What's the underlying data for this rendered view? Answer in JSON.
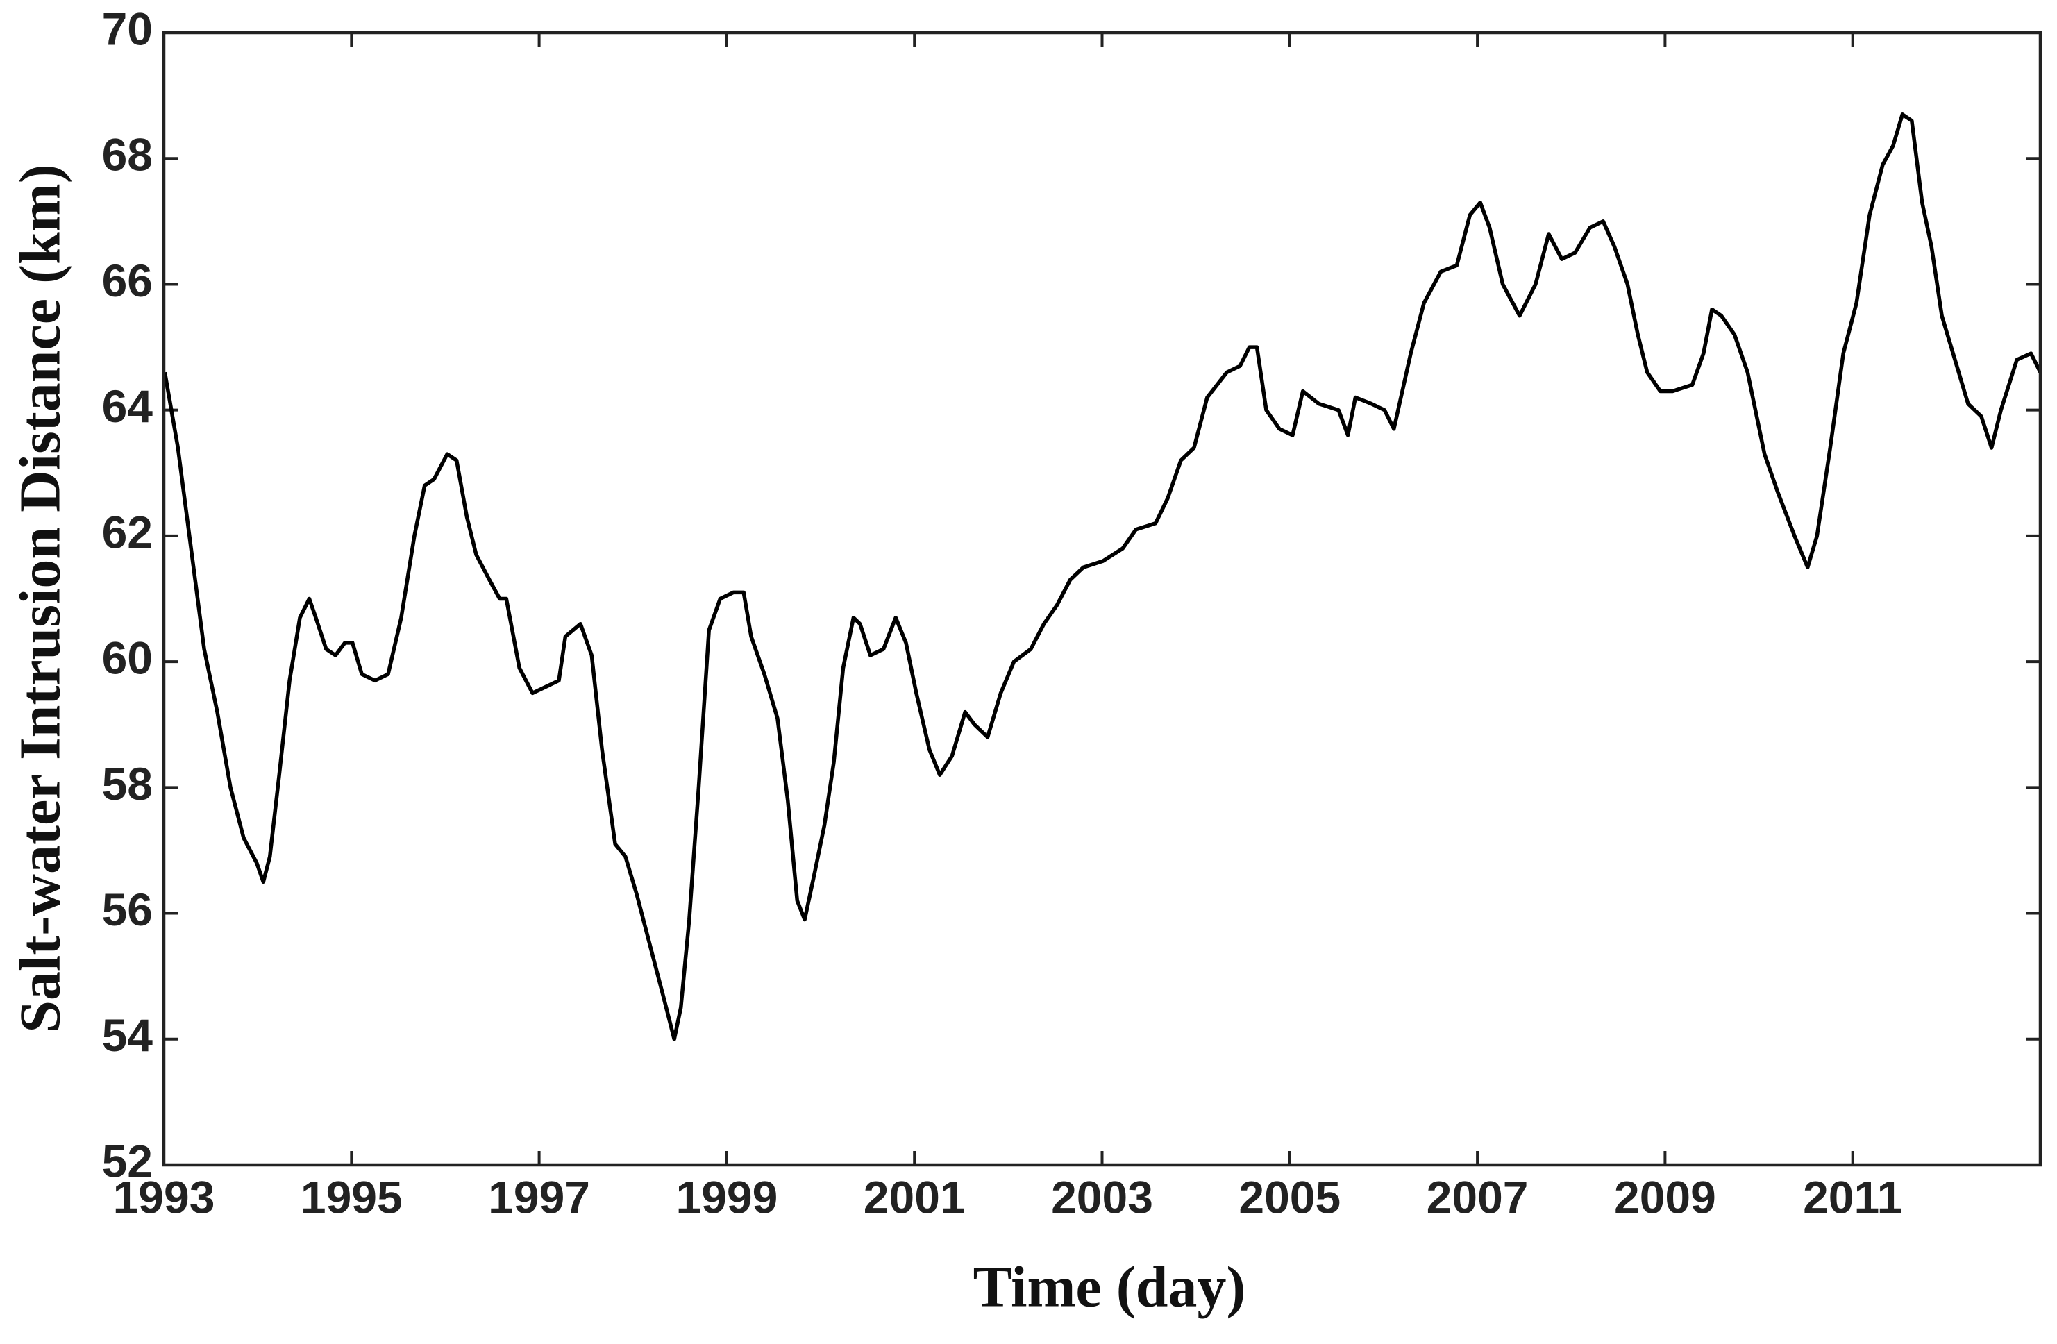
{
  "chart_data": {
    "type": "line",
    "xlabel": "Time (day)",
    "ylabel": "Salt-water Intrusion Distance (km)",
    "xlim": [
      1993,
      2013
    ],
    "xticks": [
      1993,
      1995,
      1997,
      1999,
      2001,
      2003,
      2005,
      2007,
      2009,
      2011
    ],
    "ylim": [
      52,
      70
    ],
    "yticks": [
      52,
      54,
      56,
      58,
      60,
      62,
      64,
      66,
      68,
      70
    ],
    "grid": false,
    "series": [
      {
        "color": "#000000",
        "x": [
          1993.01,
          1993.15,
          1993.29,
          1993.43,
          1993.57,
          1993.71,
          1993.85,
          1993.99,
          1994.06,
          1994.13,
          1994.23,
          1994.34,
          1994.45,
          1994.55,
          1994.62,
          1994.73,
          1994.83,
          1994.93,
          1995.01,
          1995.11,
          1995.25,
          1995.39,
          1995.53,
          1995.67,
          1995.78,
          1995.88,
          1996.02,
          1996.12,
          1996.23,
          1996.33,
          1996.47,
          1996.58,
          1996.65,
          1996.79,
          1996.93,
          1997.07,
          1997.21,
          1997.28,
          1997.44,
          1997.56,
          1997.67,
          1997.81,
          1997.92,
          1998.04,
          1998.18,
          1998.32,
          1998.44,
          1998.51,
          1998.6,
          1998.7,
          1998.81,
          1998.93,
          1999.07,
          1999.18,
          1999.26,
          1999.4,
          1999.54,
          1999.65,
          1999.75,
          1999.83,
          1999.93,
          2000.04,
          2000.14,
          2000.24,
          2000.35,
          2000.42,
          2000.53,
          2000.67,
          2000.8,
          2000.91,
          2001.02,
          2001.16,
          2001.27,
          2001.4,
          2001.54,
          2001.64,
          2001.78,
          2001.92,
          2002.06,
          2002.24,
          2002.38,
          2002.52,
          2002.66,
          2002.8,
          2003.01,
          2003.22,
          2003.36,
          2003.57,
          2003.7,
          2003.84,
          2003.98,
          2004.12,
          2004.33,
          2004.47,
          2004.57,
          2004.65,
          2004.75,
          2004.89,
          2005.03,
          2005.14,
          2005.31,
          2005.52,
          2005.62,
          2005.7,
          2005.87,
          2006.01,
          2006.11,
          2006.29,
          2006.43,
          2006.61,
          2006.78,
          2006.92,
          2007.03,
          2007.13,
          2007.27,
          2007.45,
          2007.62,
          2007.76,
          2007.9,
          2008.04,
          2008.2,
          2008.34,
          2008.46,
          2008.6,
          2008.71,
          2008.81,
          2008.95,
          2009.08,
          2009.29,
          2009.41,
          2009.5,
          2009.6,
          2009.74,
          2009.88,
          2010.06,
          2010.2,
          2010.38,
          2010.52,
          2010.62,
          2010.76,
          2010.9,
          2011.04,
          2011.18,
          2011.32,
          2011.43,
          2011.53,
          2011.63,
          2011.74,
          2011.84,
          2011.95,
          2012.09,
          2012.23,
          2012.37,
          2012.48,
          2012.58,
          2012.75,
          2012.9,
          2013.0
        ],
        "values": [
          64.6,
          63.4,
          61.8,
          60.2,
          59.2,
          58.0,
          57.2,
          56.8,
          56.5,
          56.9,
          58.2,
          59.7,
          60.7,
          61.0,
          60.7,
          60.2,
          60.1,
          60.3,
          60.3,
          59.8,
          59.7,
          59.8,
          60.7,
          62.0,
          62.8,
          62.9,
          63.3,
          63.2,
          62.3,
          61.7,
          61.3,
          61.0,
          61.0,
          59.9,
          59.5,
          59.6,
          59.7,
          60.4,
          60.6,
          60.1,
          58.6,
          57.1,
          56.9,
          56.3,
          55.5,
          54.7,
          54.0,
          54.5,
          55.9,
          58.0,
          60.5,
          61.0,
          61.1,
          61.1,
          60.4,
          59.8,
          59.1,
          57.8,
          56.2,
          55.9,
          56.6,
          57.4,
          58.4,
          59.9,
          60.7,
          60.6,
          60.1,
          60.2,
          60.7,
          60.3,
          59.5,
          58.6,
          58.2,
          58.5,
          59.2,
          59.0,
          58.8,
          59.5,
          60.0,
          60.2,
          60.6,
          60.9,
          61.3,
          61.5,
          61.6,
          61.8,
          62.1,
          62.2,
          62.6,
          63.2,
          63.4,
          64.2,
          64.6,
          64.7,
          65.0,
          65.0,
          64.0,
          63.7,
          63.6,
          64.3,
          64.1,
          64.0,
          63.6,
          64.2,
          64.1,
          64.0,
          63.7,
          64.9,
          65.7,
          66.2,
          66.3,
          67.1,
          67.3,
          66.9,
          66.0,
          65.5,
          66.0,
          66.8,
          66.4,
          66.5,
          66.9,
          67.0,
          66.6,
          66.0,
          65.2,
          64.6,
          64.3,
          64.3,
          64.4,
          64.9,
          65.6,
          65.5,
          65.2,
          64.6,
          63.3,
          62.7,
          62.0,
          61.5,
          62.0,
          63.4,
          64.9,
          65.7,
          67.1,
          67.9,
          68.2,
          68.7,
          68.6,
          67.3,
          66.6,
          65.5,
          64.8,
          64.1,
          63.9,
          63.4,
          64.0,
          64.8,
          64.9,
          64.6
        ]
      }
    ]
  }
}
